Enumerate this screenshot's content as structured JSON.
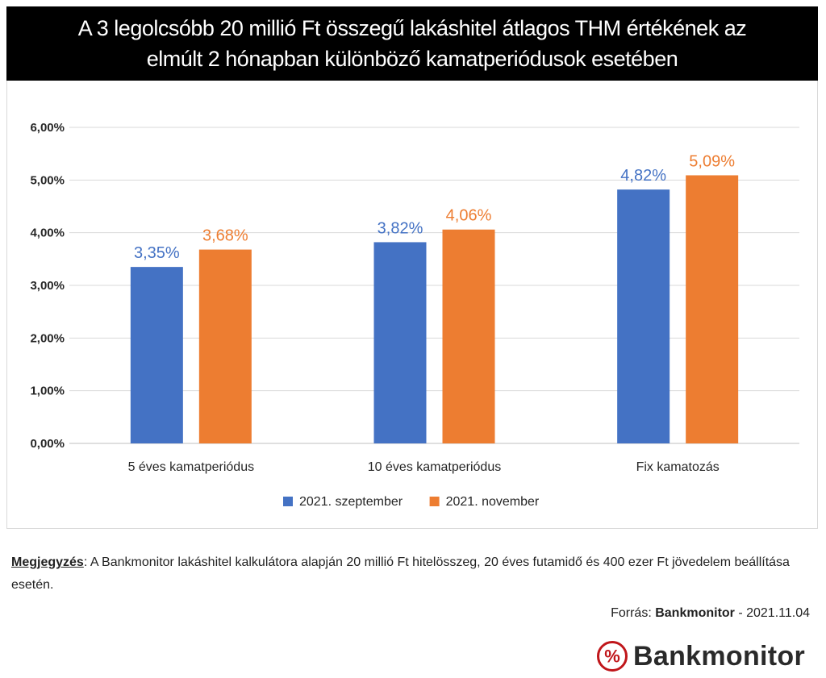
{
  "title": {
    "line1": "A 3 legolcsóbb 20 millió Ft összegű lakáshitel átlagos THM értékének az",
    "line2": "elmúlt 2 hónapban különböző kamatperiódusok esetében"
  },
  "chart_data": {
    "type": "bar",
    "categories": [
      "5 éves kamatperiódus",
      "10 éves kamatperiódus",
      "Fix kamatozás"
    ],
    "series": [
      {
        "name": "2021. szeptember",
        "values": [
          3.35,
          3.82,
          4.82
        ],
        "labels": [
          "3,35%",
          "3,82%",
          "4,82%"
        ],
        "color": "#4472C4"
      },
      {
        "name": "2021. november",
        "values": [
          3.68,
          4.06,
          5.09
        ],
        "labels": [
          "3,68%",
          "4,06%",
          "5,09%"
        ],
        "color": "#ED7D31"
      }
    ],
    "ylim": [
      0,
      6
    ],
    "yticks": [
      0,
      1,
      2,
      3,
      4,
      5,
      6
    ],
    "ytick_labels": [
      "0,00%",
      "1,00%",
      "2,00%",
      "3,00%",
      "4,00%",
      "5,00%",
      "6,00%"
    ],
    "grid": true,
    "legend": "bottom-center",
    "xlabel": "",
    "ylabel": ""
  },
  "note": {
    "label": "Megjegyzés",
    "text": ": A Bankmonitor lakáshitel kalkulátora alapján 20 millió Ft hitelösszeg, 20 éves futamidő és 400 ezer Ft jövedelem beállítása esetén."
  },
  "source": {
    "prefix": "Forrás: ",
    "brand": "Bankmonitor",
    "suffix": " - 2021.11.04"
  },
  "logo": {
    "symbol": "%",
    "text": "Bankmonitor",
    "color": "#C0161A"
  }
}
